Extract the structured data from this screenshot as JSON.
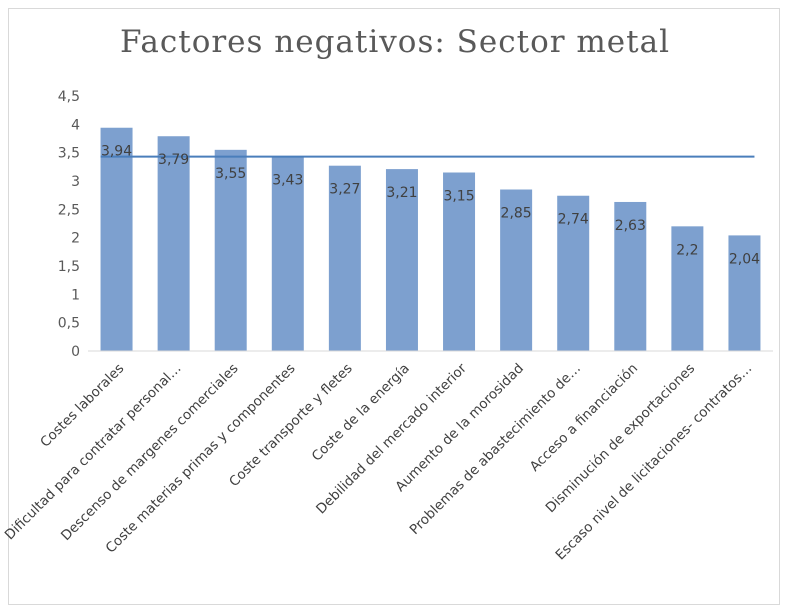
{
  "chart_data": {
    "type": "bar",
    "title": "Factores negativos: Sector metal",
    "categories": [
      "Costes laborales",
      "Dificultad  para contratar personal…",
      "Descenso de margenes comerciales",
      "Coste materias primas y componentes",
      "Coste transporte y fletes",
      "Coste de la energía",
      "Debilidad  del mercado interior",
      "Aumento de la morosidad",
      "Problemas de abastecimiento  de…",
      "Acceso a  financiación",
      "Disminución de exportaciones",
      "Escaso nivel de licitaciones- contratos…"
    ],
    "values": [
      3.94,
      3.79,
      3.55,
      3.43,
      3.27,
      3.21,
      3.15,
      2.85,
      2.74,
      2.63,
      2.2,
      2.04
    ],
    "value_labels": [
      "3,94",
      "3,79",
      "3,55",
      "3,43",
      "3,27",
      "3,21",
      "3,15",
      "2,85",
      "2,74",
      "2,63",
      "2,2",
      "2,04"
    ],
    "yticks": [
      "0",
      "0,5",
      "1",
      "1,5",
      "2",
      "2,5",
      "3",
      "3,5",
      "4",
      "4,5"
    ],
    "ylim": [
      0,
      4.5
    ],
    "average_line": 3.43,
    "xlabel": "",
    "ylabel": "",
    "grid": false,
    "legend": "none",
    "colors": {
      "bar": "#7da0cf",
      "line": "#4a7ebb",
      "axis": "#d9d9d9"
    }
  }
}
